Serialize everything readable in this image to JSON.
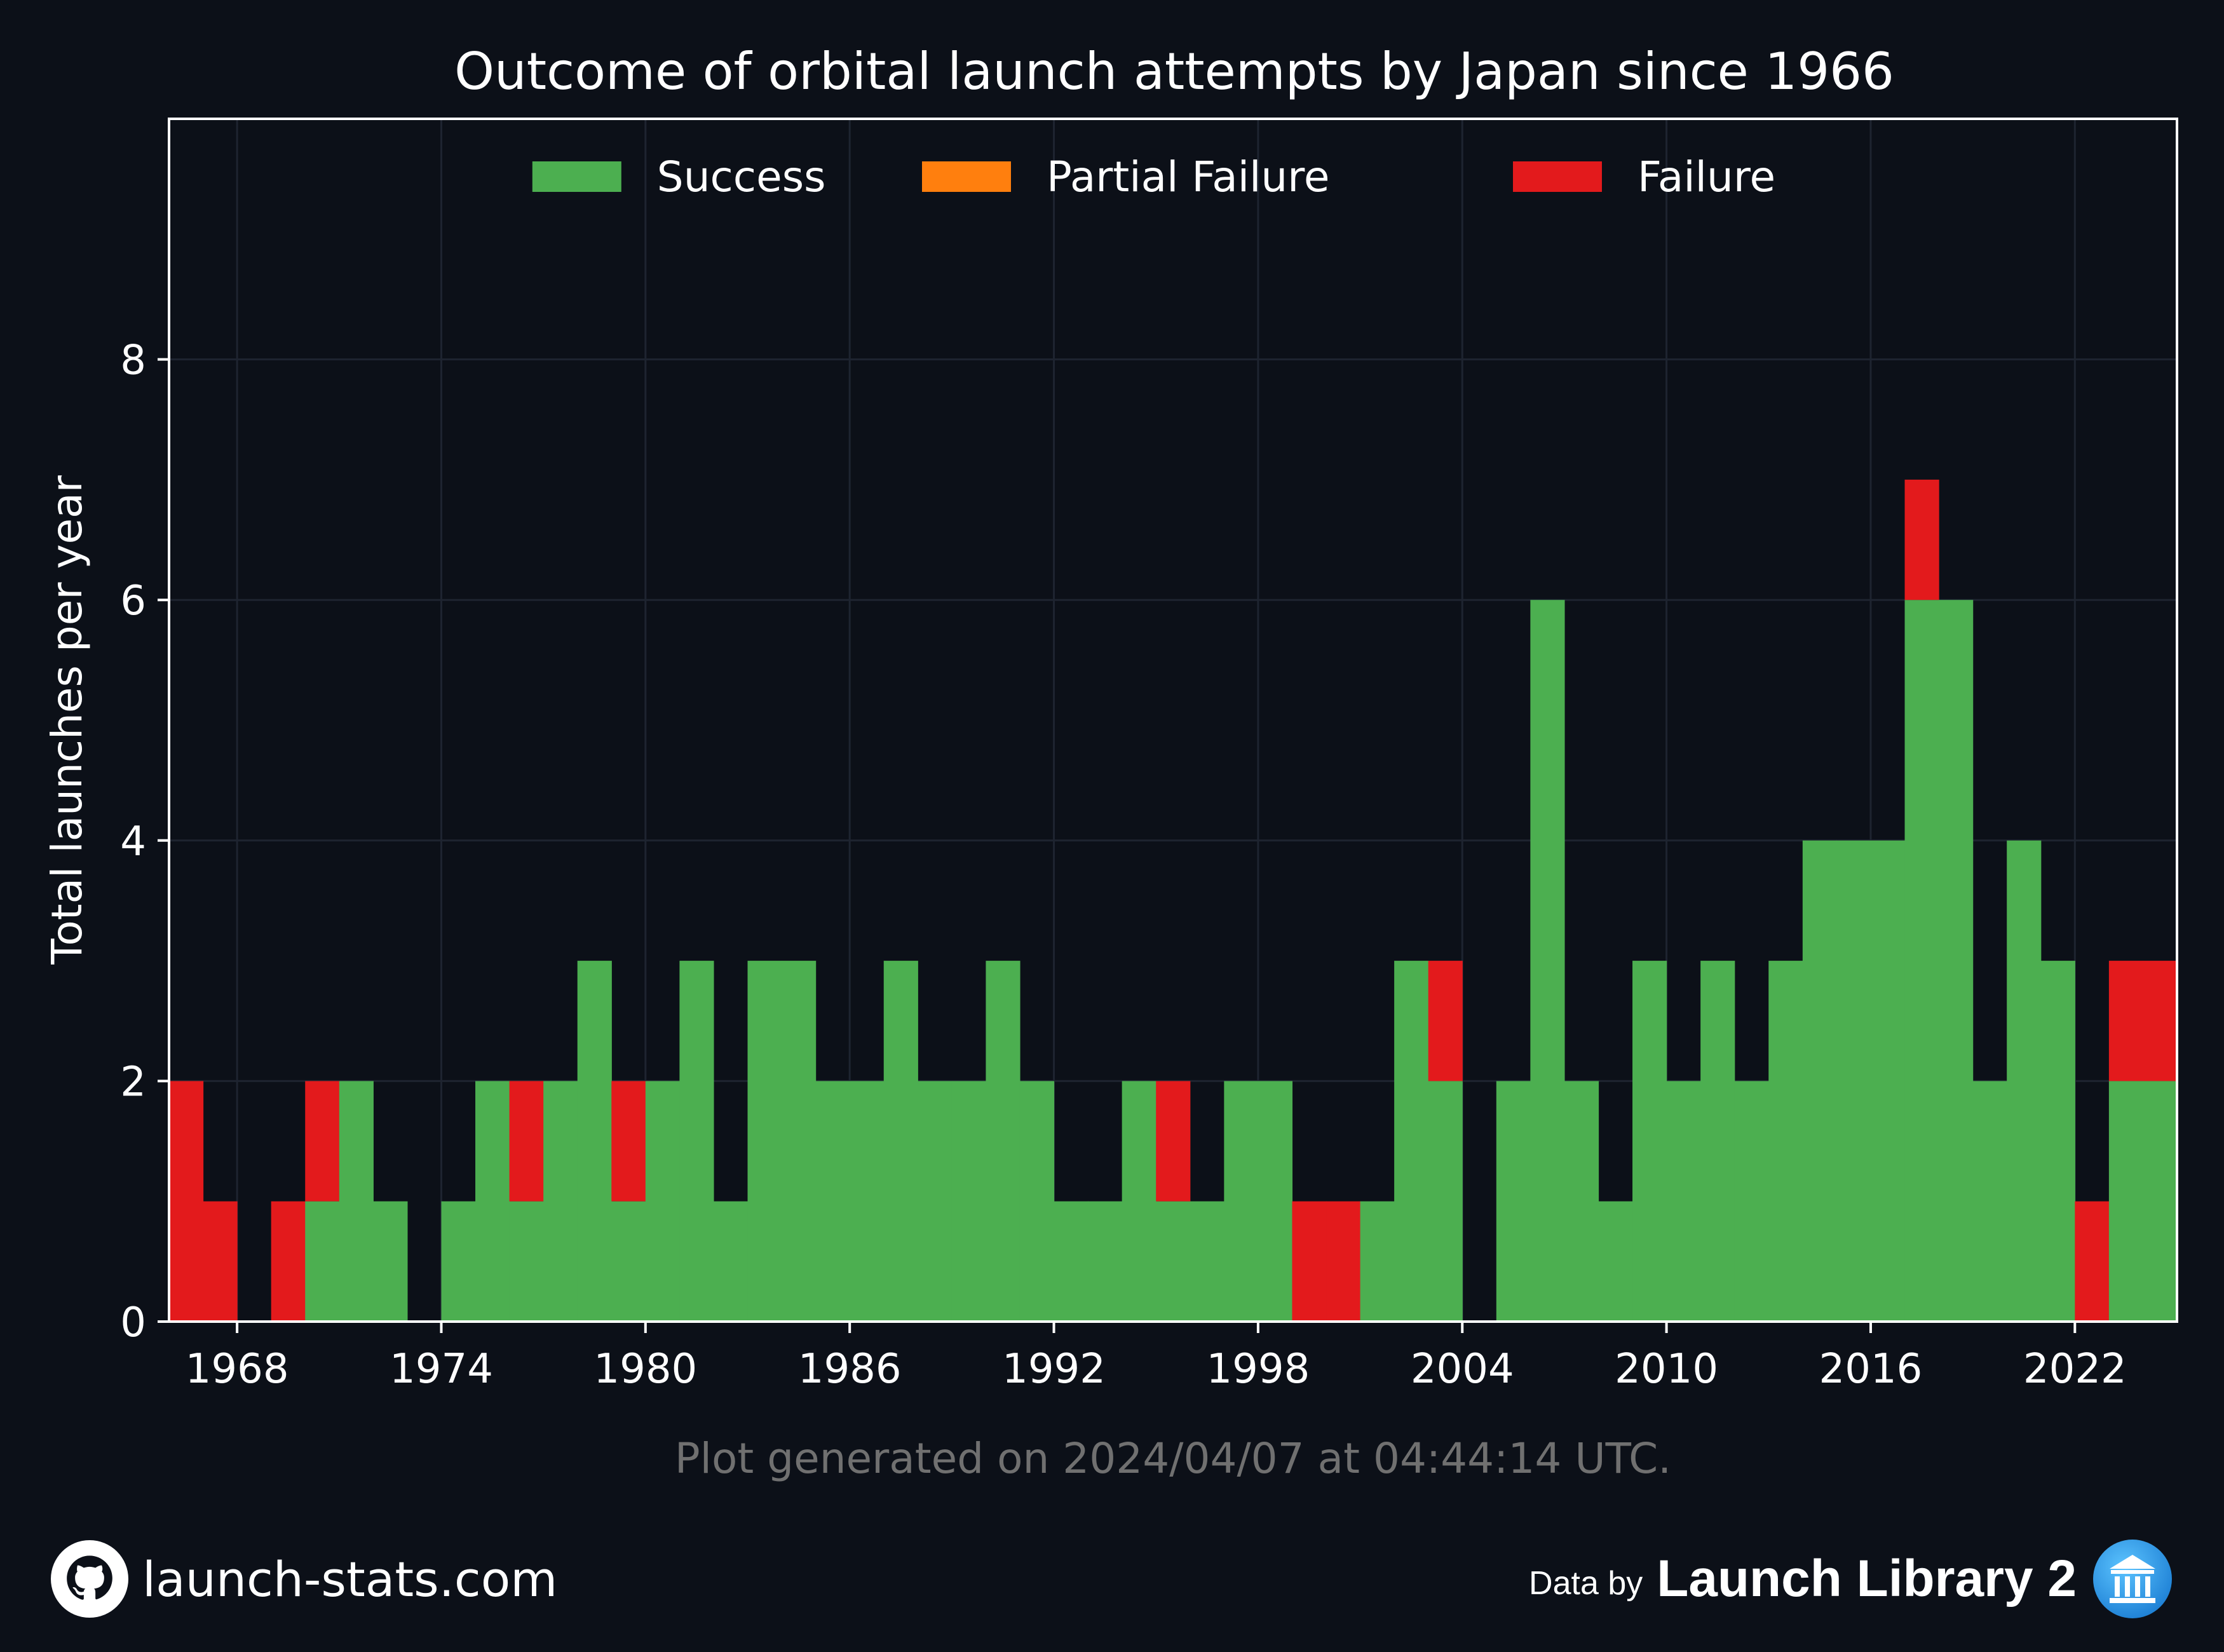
{
  "chart_data": {
    "type": "bar",
    "stacked": true,
    "title": "Outcome of orbital launch attempts by Japan since 1966",
    "ylabel": "Total launches per year",
    "xlabel": "",
    "xlim": [
      1966,
      2025
    ],
    "ylim": [
      0,
      10
    ],
    "xticks": [
      1968,
      1974,
      1980,
      1986,
      1992,
      1998,
      2004,
      2010,
      2016,
      2022
    ],
    "yticks": [
      0,
      2,
      4,
      6,
      8
    ],
    "grid": true,
    "legend_position": "top-center",
    "x": [
      1966,
      1967,
      1968,
      1969,
      1970,
      1971,
      1972,
      1973,
      1974,
      1975,
      1976,
      1977,
      1978,
      1979,
      1980,
      1981,
      1982,
      1983,
      1984,
      1985,
      1986,
      1987,
      1988,
      1989,
      1990,
      1991,
      1992,
      1993,
      1994,
      1995,
      1996,
      1997,
      1998,
      1999,
      2000,
      2001,
      2002,
      2003,
      2004,
      2005,
      2006,
      2007,
      2008,
      2009,
      2010,
      2011,
      2012,
      2013,
      2014,
      2015,
      2016,
      2017,
      2018,
      2019,
      2020,
      2021,
      2022,
      2023,
      2024
    ],
    "series": [
      {
        "name": "Success",
        "color": "#4caf50",
        "values": [
          0,
          0,
          0,
          0,
          1,
          2,
          1,
          0,
          1,
          2,
          1,
          2,
          3,
          1,
          2,
          3,
          1,
          3,
          3,
          2,
          2,
          3,
          2,
          2,
          3,
          2,
          1,
          1,
          2,
          1,
          1,
          2,
          2,
          0,
          0,
          1,
          3,
          2,
          0,
          2,
          6,
          2,
          1,
          3,
          2,
          3,
          2,
          3,
          4,
          4,
          4,
          6,
          6,
          2,
          4,
          3,
          0,
          2,
          2
        ]
      },
      {
        "name": "Partial Failure",
        "color": "#ff7f0e",
        "values": [
          0,
          0,
          0,
          0,
          0,
          0,
          0,
          0,
          0,
          0,
          0,
          0,
          0,
          0,
          0,
          0,
          0,
          0,
          0,
          0,
          0,
          0,
          0,
          0,
          0,
          0,
          0,
          0,
          0,
          0,
          0,
          0,
          0,
          0,
          0,
          0,
          0,
          0,
          0,
          0,
          0,
          0,
          0,
          0,
          0,
          0,
          0,
          0,
          0,
          0,
          0,
          0,
          0,
          0,
          0,
          0,
          0,
          0,
          0
        ]
      },
      {
        "name": "Failure",
        "color": "#e31a1c",
        "values": [
          2,
          1,
          0,
          1,
          1,
          0,
          0,
          0,
          0,
          0,
          1,
          0,
          0,
          1,
          0,
          0,
          0,
          0,
          0,
          0,
          0,
          0,
          0,
          0,
          0,
          0,
          0,
          0,
          0,
          1,
          0,
          0,
          0,
          1,
          1,
          0,
          0,
          1,
          0,
          0,
          0,
          0,
          0,
          0,
          0,
          0,
          0,
          0,
          0,
          0,
          0,
          1,
          0,
          0,
          0,
          0,
          1,
          1,
          1
        ]
      }
    ],
    "note": "Plot generated on 2024/04/07 at 04:44:14 UTC."
  },
  "colors": {
    "background": "#0c1018",
    "text": "#ffffff",
    "note": "#707070",
    "grid": "#1e2430"
  },
  "footer": {
    "site": "launch-stats.com",
    "site_icon": "github-icon",
    "data_by": "Data by",
    "library": "Launch Library 2",
    "library_icon": "library-logo-icon"
  }
}
